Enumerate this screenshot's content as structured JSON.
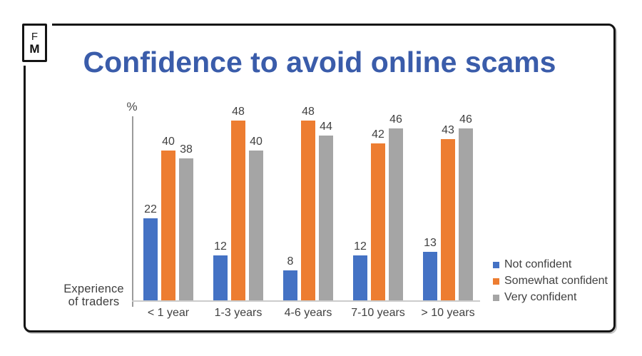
{
  "logo": {
    "line1": "F",
    "line2": "M"
  },
  "title": "Confidence to avoid online scams",
  "axis": {
    "percent_label": "%",
    "x_axis_label_line1": "Experience",
    "x_axis_label_line2": "of traders"
  },
  "chart_data": {
    "type": "bar",
    "title": "Confidence to avoid online scams",
    "categories": [
      "< 1 year",
      "1-3 years",
      "4-6 years",
      "7-10 years",
      "> 10 years"
    ],
    "series": [
      {
        "name": "Not confident",
        "color": "#4472C4",
        "values": [
          22,
          12,
          8,
          12,
          13
        ]
      },
      {
        "name": "Somewhat confident",
        "color": "#ED7D31",
        "values": [
          40,
          48,
          48,
          42,
          43
        ]
      },
      {
        "name": "Very confident",
        "color": "#A5A5A5",
        "values": [
          38,
          40,
          44,
          46,
          46
        ]
      }
    ],
    "ylabel": "%",
    "xlabel": "Experience of traders",
    "ylim": [
      0,
      50
    ],
    "grid": false,
    "data_labels": true,
    "legend_position": "right-bottom"
  },
  "colors": {
    "title": "#3A5CAA",
    "frame": "#141414",
    "data_label": "#404040",
    "axis_line": "#9B9B9B",
    "baseline": "#CCCCCC"
  }
}
